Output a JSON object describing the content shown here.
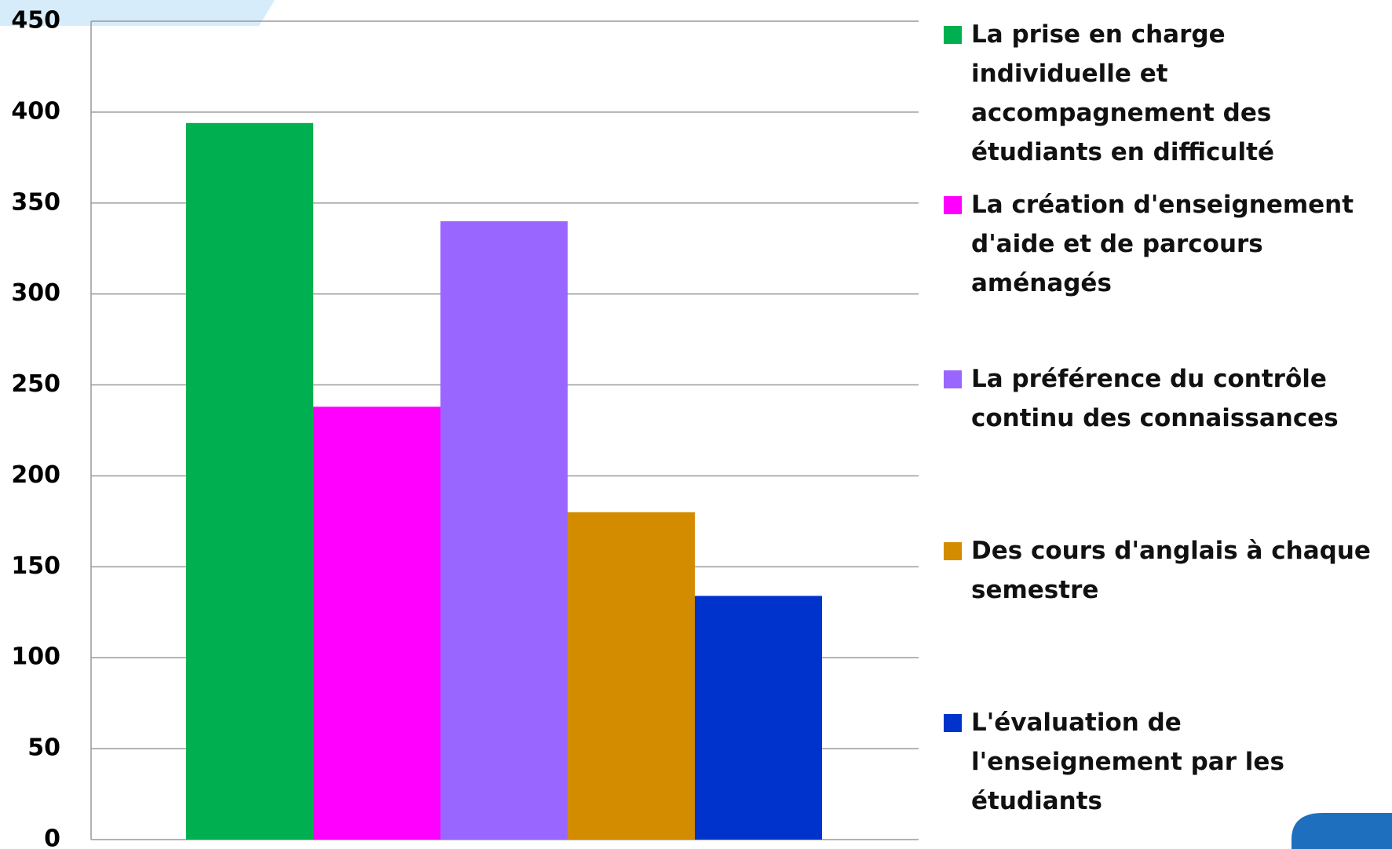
{
  "chart_data": {
    "type": "bar",
    "categories": [
      null
    ],
    "series": [
      {
        "name": "La prise en charge individuelle et accompagnement des étudiants en difficulté",
        "color": "#00b050",
        "values": [
          394
        ]
      },
      {
        "name": "La création d'enseignement d'aide et de parcours aménagés",
        "color": "#ff00ff",
        "values": [
          238
        ]
      },
      {
        "name": "La préférence du contrôle continu des connaissances",
        "color": "#9966ff",
        "values": [
          340
        ]
      },
      {
        "name": "Des cours d'anglais à chaque semestre",
        "color": "#d38b00",
        "values": [
          180
        ]
      },
      {
        "name": "L'évaluation de l'enseignement par les étudiants",
        "color": "#0033cc",
        "values": [
          134
        ]
      }
    ],
    "ylim": [
      0,
      450
    ],
    "yticks": [
      0,
      50,
      100,
      150,
      200,
      250,
      300,
      350,
      400,
      450
    ],
    "grid": true,
    "legend": "right"
  }
}
